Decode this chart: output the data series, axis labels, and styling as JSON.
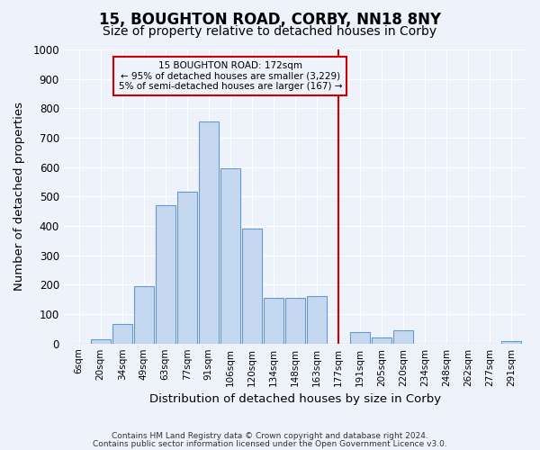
{
  "title1": "15, BOUGHTON ROAD, CORBY, NN18 8NY",
  "title2": "Size of property relative to detached houses in Corby",
  "xlabel": "Distribution of detached houses by size in Corby",
  "ylabel": "Number of detached properties",
  "categories": [
    "6sqm",
    "20sqm",
    "34sqm",
    "49sqm",
    "63sqm",
    "77sqm",
    "91sqm",
    "106sqm",
    "120sqm",
    "134sqm",
    "148sqm",
    "163sqm",
    "177sqm",
    "191sqm",
    "205sqm",
    "220sqm",
    "234sqm",
    "248sqm",
    "262sqm",
    "277sqm",
    "291sqm"
  ],
  "values": [
    0,
    13,
    65,
    195,
    470,
    515,
    755,
    595,
    390,
    155,
    155,
    160,
    0,
    40,
    20,
    45,
    0,
    0,
    0,
    0,
    8
  ],
  "bar_color": "#c5d8f0",
  "bar_edge_color": "#6699cc",
  "vline_color": "#cc0000",
  "annotation_text": "15 BOUGHTON ROAD: 172sqm\n← 95% of detached houses are smaller (3,229)\n5% of semi-detached houses are larger (167) →",
  "annotation_box_color": "#cc0000",
  "ylim": [
    0,
    1000
  ],
  "yticks": [
    0,
    100,
    200,
    300,
    400,
    500,
    600,
    700,
    800,
    900,
    1000
  ],
  "footer1": "Contains HM Land Registry data © Crown copyright and database right 2024.",
  "footer2": "Contains public sector information licensed under the Open Government Licence v3.0.",
  "bg_color": "#eef2fb",
  "grid_color": "#ffffff",
  "title1_fontsize": 12,
  "title2_fontsize": 10
}
